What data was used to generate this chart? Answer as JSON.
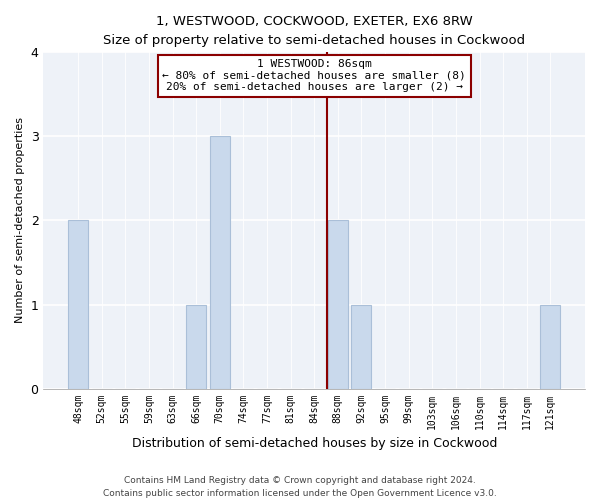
{
  "title": "1, WESTWOOD, COCKWOOD, EXETER, EX6 8RW",
  "subtitle": "Size of property relative to semi-detached houses in Cockwood",
  "xlabel": "Distribution of semi-detached houses by size in Cockwood",
  "ylabel": "Number of semi-detached properties",
  "footer_line1": "Contains HM Land Registry data © Crown copyright and database right 2024.",
  "footer_line2": "Contains public sector information licensed under the Open Government Licence v3.0.",
  "bins": [
    "48sqm",
    "52sqm",
    "55sqm",
    "59sqm",
    "63sqm",
    "66sqm",
    "70sqm",
    "74sqm",
    "77sqm",
    "81sqm",
    "84sqm",
    "88sqm",
    "92sqm",
    "95sqm",
    "99sqm",
    "103sqm",
    "106sqm",
    "110sqm",
    "114sqm",
    "117sqm",
    "121sqm"
  ],
  "counts": [
    2,
    0,
    0,
    0,
    0,
    1,
    3,
    0,
    0,
    0,
    0,
    2,
    1,
    0,
    0,
    0,
    0,
    0,
    0,
    0,
    1
  ],
  "bar_color": "#c9d9ec",
  "bar_edge_color": "#aabfd8",
  "subject_line_color": "#8b0000",
  "ylim": [
    0,
    4
  ],
  "yticks": [
    0,
    1,
    2,
    3,
    4
  ],
  "annotation_title": "1 WESTWOOD: 86sqm",
  "annotation_line1": "← 80% of semi-detached houses are smaller (8)",
  "annotation_line2": "20% of semi-detached houses are larger (2) →",
  "bg_color": "#eef2f8",
  "grid_color": "#ffffff",
  "subject_line_xindex": 10.55
}
